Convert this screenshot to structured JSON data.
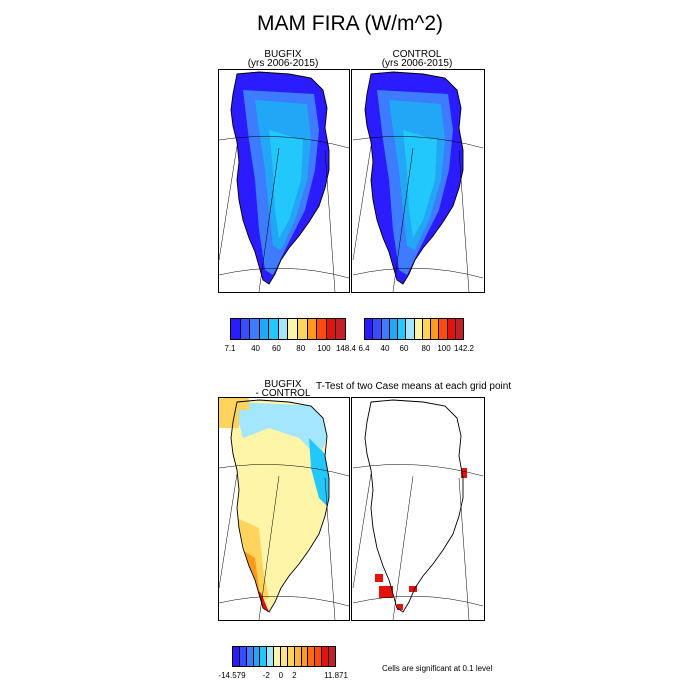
{
  "figure": {
    "title": "MAM FIRA (W/m^2)"
  },
  "panels": {
    "bugfix": {
      "line1": "BUGFIX",
      "line2": "(yrs 2006-2015)"
    },
    "control": {
      "line1": "CONTROL",
      "line2": "(yrs 2006-2015)"
    },
    "diff": {
      "line1": "BUGFIX",
      "line2": "- CONTROL"
    },
    "ttest": {
      "title": "T-Test of two Case means at each grid point"
    }
  },
  "colorbars": {
    "bugfix": {
      "colors": [
        "#2b1cff",
        "#3a4cff",
        "#3d7bff",
        "#22a7f7",
        "#22c8fb",
        "#a5e6ff",
        "#fff5a8",
        "#ffd45c",
        "#ff9a1f",
        "#ff4a12",
        "#e3120b",
        "#c4202a"
      ],
      "labels": [
        "7.1",
        "40",
        "60",
        "80",
        "100",
        "148.4"
      ]
    },
    "control": {
      "colors": [
        "#2b1cff",
        "#3a4cff",
        "#3d7bff",
        "#22a7f7",
        "#22c8fb",
        "#a5e6ff",
        "#fff5a8",
        "#ffd45c",
        "#ff9a1f",
        "#ff4a12",
        "#e3120b",
        "#c4202a"
      ],
      "labels": [
        "6.4",
        "40",
        "60",
        "80",
        "100",
        "142.2"
      ]
    },
    "diff": {
      "colors": [
        "#2b1cff",
        "#3a4cff",
        "#3d7bff",
        "#22a7f7",
        "#22c8fb",
        "#a5e6ff",
        "#fff5a8",
        "#ffe48a",
        "#ffd45c",
        "#ffb43a",
        "#ff9a1f",
        "#ff6a18",
        "#ff4a12",
        "#e3120b",
        "#c4202a"
      ],
      "labels": [
        "-14.579",
        "-2",
        "0",
        "2",
        "11.871"
      ]
    }
  },
  "footnote": "Cells are significant at 0.1 level"
}
